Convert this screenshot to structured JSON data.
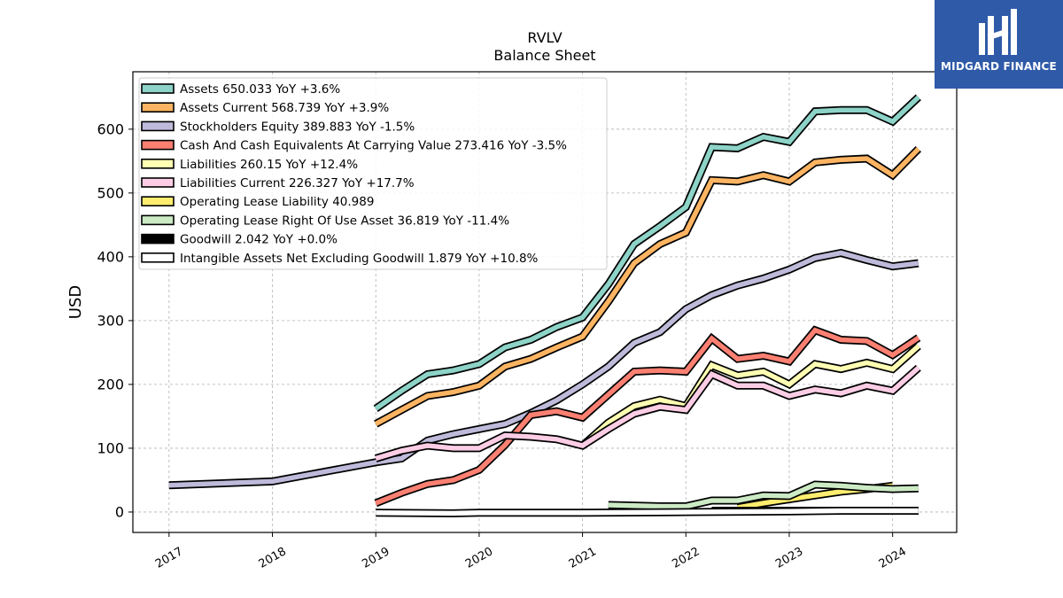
{
  "brand": {
    "name": "MIDGARD FINANCE",
    "bg_color": "#2f5aa8"
  },
  "chart_data": {
    "type": "line",
    "title": "RVLV",
    "subtitle": "Balance  Sheet",
    "ylabel": "USD",
    "xlabel": "",
    "ylim": [
      -32,
      690
    ],
    "xlim": [
      2016.65,
      2024.62
    ],
    "yticks": [
      0,
      100,
      200,
      300,
      400,
      500,
      600
    ],
    "xticks": [
      "2017",
      "2018",
      "2019",
      "2020",
      "2021",
      "2022",
      "2023",
      "2024"
    ],
    "grid": true,
    "legend_position": "top-left",
    "series": [
      {
        "name": "Assets",
        "legend": "Assets  650.033 YoY +3.6%",
        "color": "#8dd3c7",
        "points": [
          [
            2019.0,
            162
          ],
          [
            2019.25,
            190
          ],
          [
            2019.5,
            216
          ],
          [
            2019.75,
            222
          ],
          [
            2020.0,
            232
          ],
          [
            2020.25,
            258
          ],
          [
            2020.5,
            270
          ],
          [
            2020.75,
            290
          ],
          [
            2021.0,
            305
          ],
          [
            2021.25,
            357
          ],
          [
            2021.5,
            420
          ],
          [
            2021.75,
            448
          ],
          [
            2022.0,
            478
          ],
          [
            2022.25,
            572
          ],
          [
            2022.5,
            570
          ],
          [
            2022.75,
            588
          ],
          [
            2023.0,
            580
          ],
          [
            2023.25,
            628
          ],
          [
            2023.5,
            630
          ],
          [
            2023.75,
            630
          ],
          [
            2024.0,
            612
          ],
          [
            2024.25,
            650
          ]
        ]
      },
      {
        "name": "Assets Current",
        "legend": "Assets Current  568.739 YoY +3.9%",
        "color": "#fdb462",
        "points": [
          [
            2019.0,
            138
          ],
          [
            2019.25,
            160
          ],
          [
            2019.5,
            182
          ],
          [
            2019.75,
            188
          ],
          [
            2020.0,
            198
          ],
          [
            2020.25,
            228
          ],
          [
            2020.5,
            240
          ],
          [
            2020.75,
            258
          ],
          [
            2021.0,
            275
          ],
          [
            2021.25,
            330
          ],
          [
            2021.5,
            390
          ],
          [
            2021.75,
            420
          ],
          [
            2022.0,
            438
          ],
          [
            2022.25,
            520
          ],
          [
            2022.5,
            518
          ],
          [
            2022.75,
            528
          ],
          [
            2023.0,
            518
          ],
          [
            2023.25,
            548
          ],
          [
            2023.5,
            552
          ],
          [
            2023.75,
            554
          ],
          [
            2024.0,
            528
          ],
          [
            2024.25,
            569
          ]
        ]
      },
      {
        "name": "Stockholders Equity",
        "legend": "Stockholders Equity  389.883 YoY -1.5%",
        "color": "#bebada",
        "points": [
          [
            2017.0,
            42
          ],
          [
            2018.0,
            48
          ],
          [
            2019.0,
            78
          ],
          [
            2019.25,
            84
          ],
          [
            2019.5,
            112
          ],
          [
            2019.75,
            122
          ],
          [
            2020.0,
            130
          ],
          [
            2020.25,
            138
          ],
          [
            2020.5,
            155
          ],
          [
            2020.75,
            175
          ],
          [
            2021.0,
            200
          ],
          [
            2021.25,
            228
          ],
          [
            2021.5,
            265
          ],
          [
            2021.75,
            282
          ],
          [
            2022.0,
            318
          ],
          [
            2022.25,
            340
          ],
          [
            2022.5,
            355
          ],
          [
            2022.75,
            366
          ],
          [
            2023.0,
            380
          ],
          [
            2023.25,
            398
          ],
          [
            2023.5,
            406
          ],
          [
            2023.75,
            395
          ],
          [
            2024.0,
            385
          ],
          [
            2024.25,
            390
          ]
        ]
      },
      {
        "name": "Cash And Cash Equivalents At Carrying Value",
        "legend": "Cash And Cash Equivalents At Carrying Value  273.416 YoY -3.5%",
        "color": "#fb8072",
        "points": [
          [
            2019.0,
            14
          ],
          [
            2019.25,
            30
          ],
          [
            2019.5,
            44
          ],
          [
            2019.75,
            50
          ],
          [
            2020.0,
            66
          ],
          [
            2020.25,
            105
          ],
          [
            2020.5,
            152
          ],
          [
            2020.75,
            158
          ],
          [
            2021.0,
            148
          ],
          [
            2021.25,
            184
          ],
          [
            2021.5,
            220
          ],
          [
            2021.75,
            222
          ],
          [
            2022.0,
            220
          ],
          [
            2022.25,
            272
          ],
          [
            2022.5,
            240
          ],
          [
            2022.75,
            245
          ],
          [
            2023.0,
            236
          ],
          [
            2023.25,
            285
          ],
          [
            2023.5,
            270
          ],
          [
            2023.75,
            268
          ],
          [
            2024.0,
            246
          ],
          [
            2024.25,
            273
          ]
        ]
      },
      {
        "name": "Liabilities",
        "legend": "Liabilities  260.15 YoY +12.4%",
        "color": "#ffffb3",
        "points": [
          [
            2021.0,
            104
          ],
          [
            2021.25,
            140
          ],
          [
            2021.5,
            166
          ],
          [
            2021.75,
            176
          ],
          [
            2022.0,
            166
          ],
          [
            2022.25,
            230
          ],
          [
            2022.5,
            214
          ],
          [
            2022.75,
            220
          ],
          [
            2023.0,
            200
          ],
          [
            2023.25,
            232
          ],
          [
            2023.5,
            224
          ],
          [
            2023.75,
            234
          ],
          [
            2024.0,
            224
          ],
          [
            2024.25,
            260
          ]
        ]
      },
      {
        "name": "Liabilities Current",
        "legend": "Liabilities Current  226.327 YoY +17.7%",
        "color": "#fccde5",
        "points": [
          [
            2019.0,
            84
          ],
          [
            2019.25,
            96
          ],
          [
            2019.5,
            104
          ],
          [
            2019.75,
            100
          ],
          [
            2020.0,
            100
          ],
          [
            2020.25,
            120
          ],
          [
            2020.5,
            118
          ],
          [
            2020.75,
            114
          ],
          [
            2021.0,
            104
          ],
          [
            2021.25,
            130
          ],
          [
            2021.5,
            154
          ],
          [
            2021.75,
            165
          ],
          [
            2022.0,
            160
          ],
          [
            2022.25,
            216
          ],
          [
            2022.5,
            198
          ],
          [
            2022.75,
            198
          ],
          [
            2023.0,
            182
          ],
          [
            2023.25,
            192
          ],
          [
            2023.5,
            186
          ],
          [
            2023.75,
            198
          ],
          [
            2024.0,
            190
          ],
          [
            2024.25,
            226
          ]
        ]
      },
      {
        "name": "Operating Lease Liability",
        "legend": "Operating Lease Liability  40.989",
        "color": "#ffed6f",
        "points": [
          [
            2022.5,
            7
          ],
          [
            2022.75,
            14
          ],
          [
            2023.0,
            20
          ],
          [
            2023.25,
            26
          ],
          [
            2023.5,
            32
          ],
          [
            2023.75,
            36
          ],
          [
            2024.0,
            41
          ]
        ]
      },
      {
        "name": "Operating Lease Right Of Use Asset",
        "legend": "Operating Lease Right Of Use Asset  36.819 YoY -11.4%",
        "color": "#ccebc5",
        "points": [
          [
            2021.25,
            11
          ],
          [
            2021.5,
            10
          ],
          [
            2021.75,
            9
          ],
          [
            2022.0,
            9
          ],
          [
            2022.25,
            18
          ],
          [
            2022.5,
            18
          ],
          [
            2022.75,
            26
          ],
          [
            2023.0,
            25
          ],
          [
            2023.25,
            43
          ],
          [
            2023.5,
            41
          ],
          [
            2023.75,
            38
          ],
          [
            2024.0,
            36
          ],
          [
            2024.25,
            37
          ]
        ]
      },
      {
        "name": "Goodwill",
        "legend": "Goodwill  2.042 YoY +0.0%",
        "color": "#000000",
        "points": [
          [
            2022.25,
            2
          ],
          [
            2022.5,
            2
          ],
          [
            2022.75,
            2
          ],
          [
            2023.0,
            2
          ],
          [
            2023.25,
            2
          ],
          [
            2023.5,
            2
          ],
          [
            2023.75,
            2
          ],
          [
            2024.0,
            2
          ],
          [
            2024.25,
            2
          ]
        ]
      },
      {
        "name": "Intangible Assets Net Excluding Goodwill",
        "legend": "Intangible Assets Net Excluding Goodwill  1.879 YoY +10.8%",
        "color": "#ffffff",
        "points": [
          [
            2019.0,
            -1
          ],
          [
            2019.75,
            -2
          ],
          [
            2020.0,
            -1
          ],
          [
            2021.0,
            -1
          ],
          [
            2022.0,
            0
          ],
          [
            2023.0,
            1
          ],
          [
            2023.5,
            2
          ],
          [
            2024.0,
            2
          ],
          [
            2024.25,
            2
          ]
        ]
      }
    ]
  }
}
